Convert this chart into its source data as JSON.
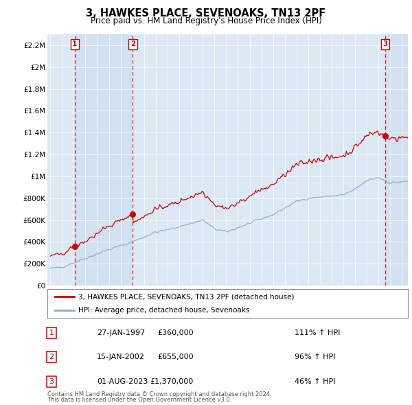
{
  "title": "3, HAWKES PLACE, SEVENOAKS, TN13 2PF",
  "subtitle": "Price paid vs. HM Land Registry's House Price Index (HPI)",
  "legend_line1": "3, HAWKES PLACE, SEVENOAKS, TN13 2PF (detached house)",
  "legend_line2": "HPI: Average price, detached house, Sevenoaks",
  "footer1": "Contains HM Land Registry data © Crown copyright and database right 2024.",
  "footer2": "This data is licensed under the Open Government Licence v3.0.",
  "sale_prices": [
    360000,
    655000,
    1370000
  ],
  "sale_labels": [
    "1",
    "2",
    "3"
  ],
  "sale_pct": [
    "111% ↑ HPI",
    "96% ↑ HPI",
    "46% ↑ HPI"
  ],
  "sale_date_str": [
    "27-JAN-1997",
    "15-JAN-2002",
    "01-AUG-2023"
  ],
  "sale_price_str": [
    "£360,000",
    "£655,000",
    "£1,370,000"
  ],
  "property_color": "#cc0000",
  "hpi_color": "#88aacc",
  "shade_color": "#dce9f5",
  "background_color": "#dce9f5",
  "highlight_color": "#c5d9ee",
  "ylim": [
    0,
    2300000
  ],
  "xlim_start": 1994.75,
  "xlim_end": 2025.5
}
